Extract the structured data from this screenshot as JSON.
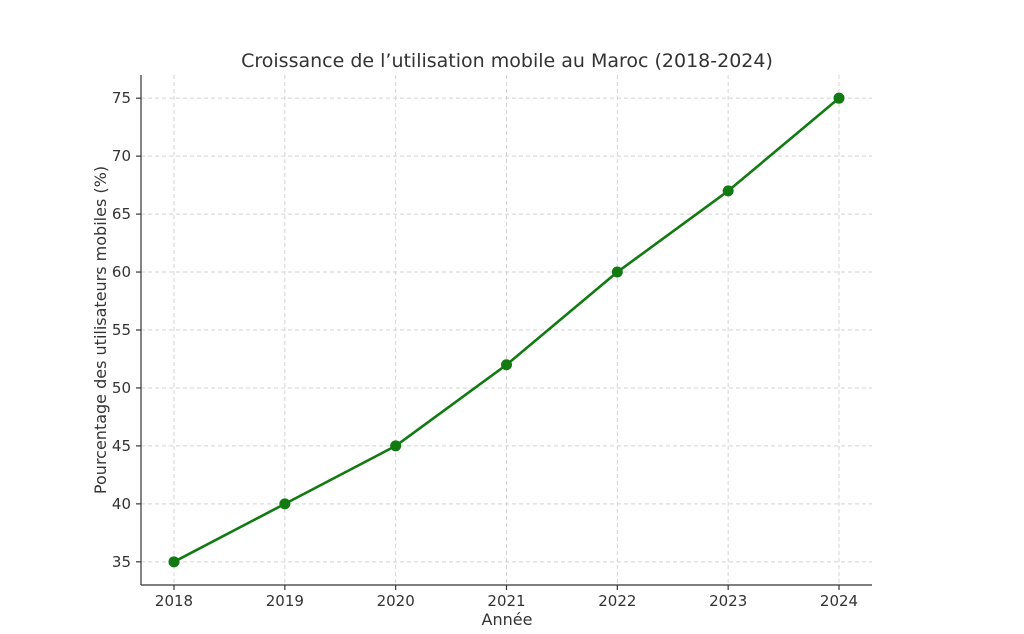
{
  "chart_data": {
    "type": "line",
    "title": "Croissance de l’utilisation mobile au Maroc (2018-2024)",
    "xlabel": "Année",
    "ylabel": "Pourcentage des utilisateurs mobiles (%)",
    "x": [
      "2018",
      "2019",
      "2020",
      "2021",
      "2022",
      "2023",
      "2024"
    ],
    "y_ticks": [
      35,
      40,
      45,
      50,
      55,
      60,
      65,
      70,
      75
    ],
    "ylim": [
      33,
      77
    ],
    "series": [
      {
        "values": [
          35,
          40,
          45,
          52,
          60,
          67,
          75
        ],
        "color": "#117a11",
        "marker": "circle"
      }
    ],
    "grid": true,
    "grid_style": "dashed"
  }
}
